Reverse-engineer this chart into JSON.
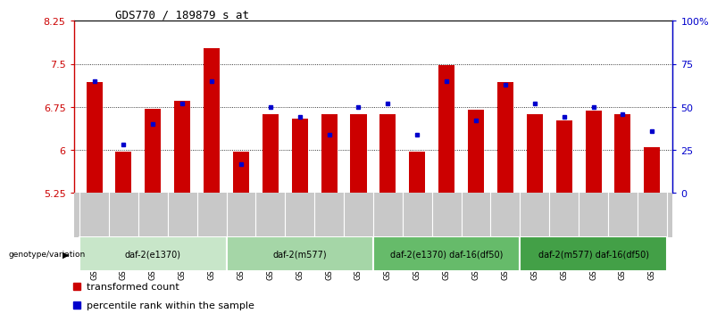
{
  "title": "GDS770 / 189879_s_at",
  "samples": [
    "GSM28389",
    "GSM28390",
    "GSM28391",
    "GSM28392",
    "GSM28393",
    "GSM28394",
    "GSM28395",
    "GSM28396",
    "GSM28397",
    "GSM28398",
    "GSM28399",
    "GSM28400",
    "GSM28401",
    "GSM28402",
    "GSM28403",
    "GSM28404",
    "GSM28405",
    "GSM28406",
    "GSM28407",
    "GSM28408"
  ],
  "bar_values": [
    7.18,
    5.97,
    6.72,
    6.85,
    7.78,
    5.97,
    6.62,
    6.55,
    6.62,
    6.62,
    6.62,
    5.97,
    7.48,
    6.7,
    7.18,
    6.62,
    6.52,
    6.68,
    6.62,
    6.05
  ],
  "dot_values_pct": [
    65,
    28,
    40,
    52,
    65,
    17,
    50,
    44,
    34,
    50,
    52,
    34,
    65,
    42,
    63,
    52,
    44,
    50,
    46,
    36
  ],
  "groups": [
    {
      "label": "daf-2(e1370)",
      "start": 0,
      "end": 5,
      "color": "#c8e6c9"
    },
    {
      "label": "daf-2(m577)",
      "start": 5,
      "end": 10,
      "color": "#a5d6a7"
    },
    {
      "label": "daf-2(e1370) daf-16(df50)",
      "start": 10,
      "end": 15,
      "color": "#66bb6a"
    },
    {
      "label": "daf-2(m577) daf-16(df50)",
      "start": 15,
      "end": 20,
      "color": "#43a047"
    }
  ],
  "ylim": [
    5.25,
    8.25
  ],
  "yticks": [
    5.25,
    6.0,
    6.75,
    7.5,
    8.25
  ],
  "ytick_labels": [
    "5.25",
    "6",
    "6.75",
    "7.5",
    "8.25"
  ],
  "y2ticks": [
    0,
    25,
    50,
    75,
    100
  ],
  "y2tick_labels": [
    "0",
    "25",
    "50",
    "75",
    "100%"
  ],
  "bar_color": "#cc0000",
  "dot_color": "#0000cc",
  "bar_width": 0.55,
  "bar_bottom": 5.25,
  "bg_color": "#ffffff",
  "plot_bg": "#ffffff",
  "tick_gray": "#c0c0c0",
  "legend_items": [
    {
      "label": "transformed count",
      "color": "#cc0000"
    },
    {
      "label": "percentile rank within the sample",
      "color": "#0000cc"
    }
  ]
}
